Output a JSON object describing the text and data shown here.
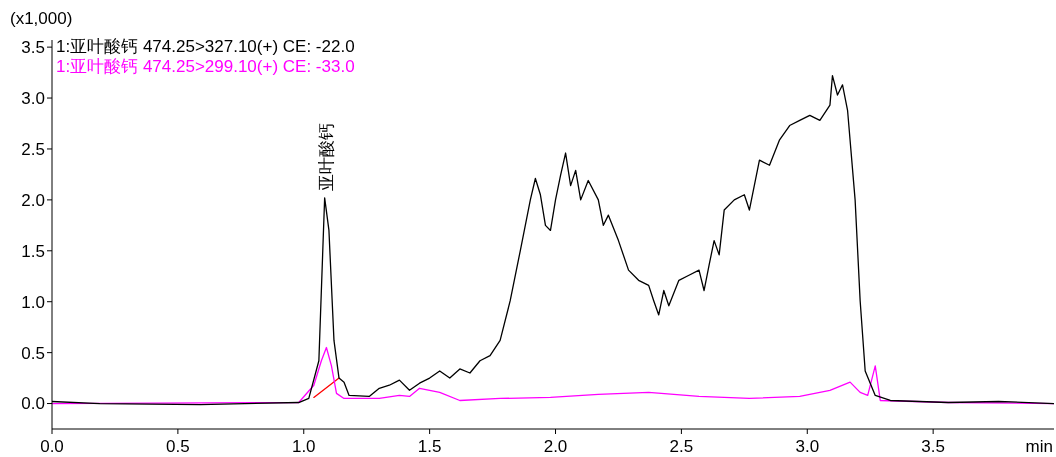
{
  "chart_data": {
    "type": "line",
    "xlabel": "min",
    "ylabel": "(x1,000)",
    "xlim": [
      0,
      3.98
    ],
    "ylim": [
      -0.25,
      3.57
    ],
    "xticks": [
      {
        "value": 0,
        "label": "0.0"
      },
      {
        "value": 0.5,
        "label": "0.5"
      },
      {
        "value": 1,
        "label": "1.0"
      },
      {
        "value": 1.5,
        "label": "1.5"
      },
      {
        "value": 2,
        "label": "2.0"
      },
      {
        "value": 2.5,
        "label": "2.5"
      },
      {
        "value": 3,
        "label": "3.0"
      },
      {
        "value": 3.5,
        "label": "3.5"
      }
    ],
    "yticks": [
      {
        "value": 0,
        "label": "0.0"
      },
      {
        "value": 0.5,
        "label": "0.5"
      },
      {
        "value": 1,
        "label": "1.0"
      },
      {
        "value": 1.5,
        "label": "1.5"
      },
      {
        "value": 2,
        "label": "2.0"
      },
      {
        "value": 2.5,
        "label": "2.5"
      },
      {
        "value": 3,
        "label": "3.0"
      },
      {
        "value": 3.5,
        "label": "3.5"
      }
    ],
    "grid": false,
    "legend": "top left",
    "marker": "none",
    "line_style": "solid",
    "annotations": [
      {
        "text": "亚叶酸钙",
        "x": 1.09,
        "y": 2.05
      }
    ],
    "series": [
      {
        "name": "1:亚叶酸钙 474.25>327.10(+) CE: -22.0",
        "color": "#000000",
        "x": [
          0,
          0.19,
          0.59,
          0.98,
          1.02,
          1.06,
          1.083,
          1.1,
          1.12,
          1.14,
          1.16,
          1.18,
          1.26,
          1.3,
          1.34,
          1.38,
          1.42,
          1.46,
          1.5,
          1.54,
          1.58,
          1.62,
          1.66,
          1.7,
          1.74,
          1.78,
          1.82,
          1.86,
          1.9,
          1.92,
          1.94,
          1.96,
          1.98,
          2.0,
          2.02,
          2.04,
          2.06,
          2.08,
          2.1,
          2.13,
          2.17,
          2.19,
          2.21,
          2.25,
          2.29,
          2.33,
          2.37,
          2.39,
          2.41,
          2.43,
          2.45,
          2.49,
          2.53,
          2.57,
          2.59,
          2.61,
          2.63,
          2.65,
          2.67,
          2.71,
          2.75,
          2.77,
          2.81,
          2.85,
          2.89,
          2.93,
          2.97,
          3.01,
          3.05,
          3.09,
          3.1,
          3.12,
          3.14,
          3.16,
          3.19,
          3.21,
          3.23,
          3.27,
          3.33,
          3.56,
          3.76,
          3.98
        ],
        "values": [
          0.02,
          0,
          -0.01,
          0.01,
          0.05,
          0.42,
          2.02,
          1.7,
          0.62,
          0.25,
          0.21,
          0.08,
          0.07,
          0.15,
          0.18,
          0.23,
          0.13,
          0.2,
          0.25,
          0.32,
          0.25,
          0.34,
          0.3,
          0.42,
          0.47,
          0.62,
          1.01,
          1.5,
          2.0,
          2.21,
          2.05,
          1.75,
          1.7,
          2.0,
          2.24,
          2.46,
          2.14,
          2.29,
          2.0,
          2.19,
          2.0,
          1.75,
          1.85,
          1.6,
          1.31,
          1.21,
          1.16,
          1.01,
          0.87,
          1.11,
          0.96,
          1.21,
          1.26,
          1.31,
          1.11,
          1.36,
          1.6,
          1.46,
          1.9,
          2.0,
          2.05,
          1.9,
          2.39,
          2.34,
          2.59,
          2.73,
          2.78,
          2.83,
          2.78,
          2.93,
          3.22,
          3.03,
          3.13,
          2.88,
          2.0,
          1.01,
          0.32,
          0.08,
          0.03,
          0.01,
          0.02,
          0
        ]
      },
      {
        "name": "1:亚叶酸钙 474.25>299.10(+) CE: -33.0",
        "color": "#ff00ff",
        "x": [
          0,
          0.98,
          1.04,
          1.07,
          1.09,
          1.11,
          1.13,
          1.16,
          1.3,
          1.38,
          1.42,
          1.46,
          1.54,
          1.62,
          1.78,
          1.98,
          2.17,
          2.37,
          2.57,
          2.77,
          2.97,
          3.09,
          3.17,
          3.21,
          3.24,
          3.27,
          3.29,
          3.56,
          3.98
        ],
        "values": [
          0,
          0.01,
          0.18,
          0.42,
          0.55,
          0.37,
          0.1,
          0.05,
          0.05,
          0.08,
          0.07,
          0.15,
          0.11,
          0.03,
          0.05,
          0.06,
          0.09,
          0.11,
          0.07,
          0.05,
          0.07,
          0.13,
          0.21,
          0.11,
          0.08,
          0.37,
          0.03,
          0.01,
          0
        ]
      },
      {
        "color": "#ff0000",
        "x": [
          1.04,
          1.14
        ],
        "values": [
          0.06,
          0.25
        ]
      }
    ]
  }
}
